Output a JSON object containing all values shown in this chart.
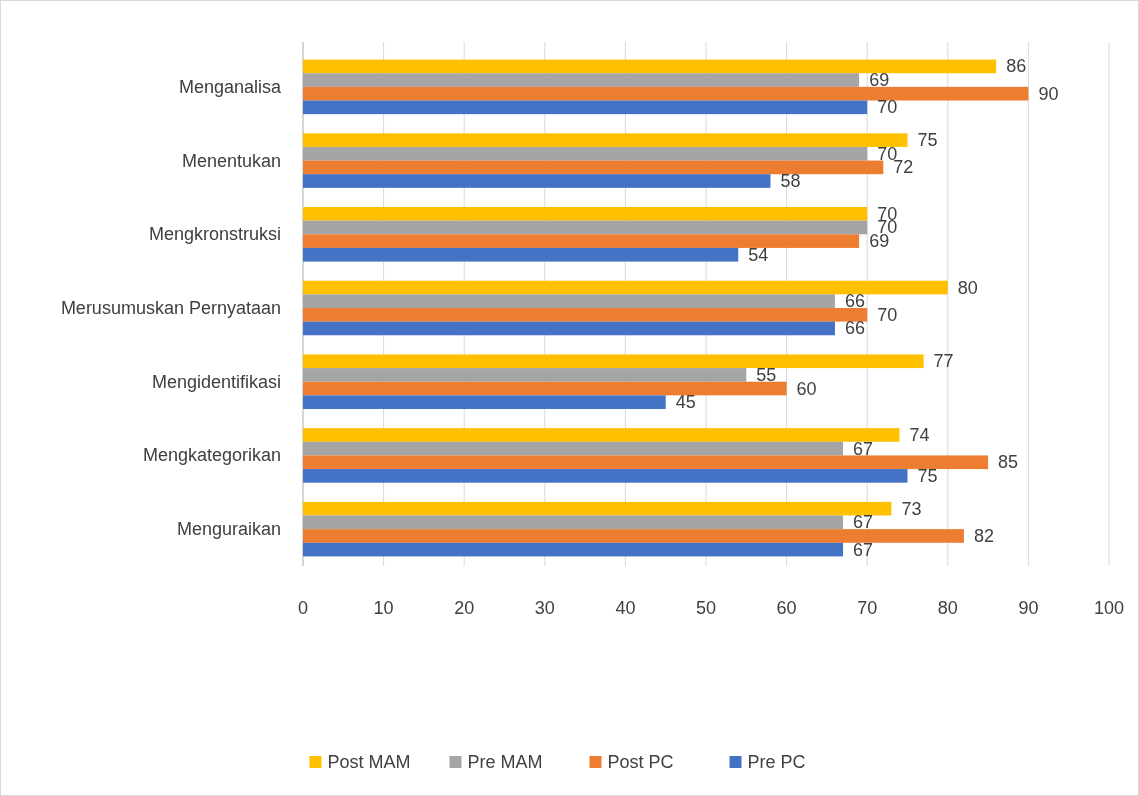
{
  "chart_data": {
    "type": "bar",
    "orientation": "horizontal",
    "categories": [
      "Menganalisa",
      "Menentukan",
      "Mengkronstruksi",
      "Merusumuskan Pernyataan",
      "Mengidentifikasi",
      "Mengkategorikan",
      "Menguraikan"
    ],
    "series": [
      {
        "name": "Post MAM",
        "color": "#ffc000",
        "values": [
          86,
          75,
          70,
          80,
          77,
          74,
          73
        ]
      },
      {
        "name": "Pre MAM",
        "color": "#a5a5a5",
        "values": [
          69,
          70,
          70,
          66,
          55,
          67,
          67
        ]
      },
      {
        "name": "Post PC",
        "color": "#ed7d31",
        "values": [
          90,
          72,
          69,
          70,
          60,
          85,
          82
        ]
      },
      {
        "name": "Pre PC",
        "color": "#4472c4",
        "values": [
          70,
          58,
          54,
          66,
          45,
          75,
          67
        ]
      }
    ],
    "xlim": [
      0,
      100
    ],
    "xticks": [
      0,
      10,
      20,
      30,
      40,
      50,
      60,
      70,
      80,
      90,
      100
    ],
    "grid": "x",
    "legend": "bottom",
    "data_labels": true
  }
}
